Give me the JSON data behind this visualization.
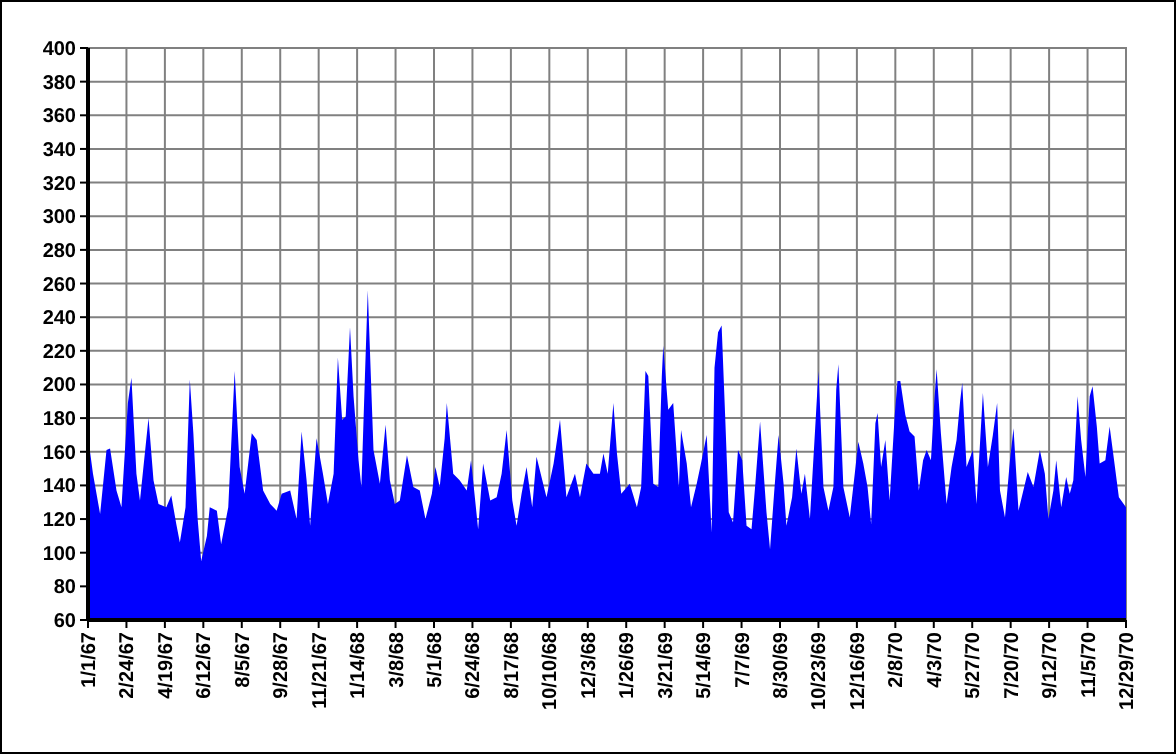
{
  "chart_data": {
    "type": "area",
    "grid": true,
    "x": [
      "1967-01-01",
      "1967-01-08",
      "1967-01-18",
      "1967-01-27",
      "1967-02-01",
      "1967-02-10",
      "1967-02-17",
      "1967-02-26",
      "1967-03-03",
      "1967-03-10",
      "1967-03-15",
      "1967-03-27",
      "1967-04-03",
      "1967-04-10",
      "1967-04-21",
      "1967-04-28",
      "1967-05-05",
      "1967-05-10",
      "1967-05-18",
      "1967-05-24",
      "1967-05-29",
      "1967-06-04",
      "1967-06-09",
      "1967-06-17",
      "1967-06-21",
      "1967-07-01",
      "1967-07-07",
      "1967-07-17",
      "1967-07-26",
      "1967-08-02",
      "1967-08-09",
      "1967-08-19",
      "1967-08-26",
      "1967-09-04",
      "1967-09-14",
      "1967-09-23",
      "1967-09-30",
      "1967-10-12",
      "1967-10-21",
      "1967-10-28",
      "1967-11-04",
      "1967-11-09",
      "1967-11-18",
      "1967-11-27",
      "1967-12-04",
      "1967-12-12",
      "1967-12-18",
      "1967-12-24",
      "1967-12-29",
      "1968-01-04",
      "1968-01-09",
      "1968-01-16",
      "1968-01-20",
      "1968-01-25",
      "1968-01-29",
      "1968-02-06",
      "1968-02-15",
      "1968-02-23",
      "1968-02-29",
      "1968-03-07",
      "1968-03-14",
      "1968-03-24",
      "1968-04-02",
      "1968-04-11",
      "1968-04-19",
      "1968-04-28",
      "1968-05-03",
      "1968-05-09",
      "1968-05-16",
      "1968-05-19",
      "1968-05-28",
      "1968-06-06",
      "1968-06-16",
      "1968-06-22",
      "1968-07-02",
      "1968-07-09",
      "1968-07-19",
      "1968-07-28",
      "1968-08-04",
      "1968-08-11",
      "1968-08-19",
      "1968-08-25",
      "1968-09-01",
      "1968-09-08",
      "1968-09-16",
      "1968-09-22",
      "1968-09-29",
      "1968-10-06",
      "1968-10-16",
      "1968-10-25",
      "1968-11-03",
      "1968-11-15",
      "1968-11-22",
      "1968-12-01",
      "1968-12-11",
      "1968-12-20",
      "1968-12-25",
      "1968-12-31",
      "1969-01-08",
      "1969-01-13",
      "1969-01-19",
      "1969-01-31",
      "1969-02-10",
      "1969-02-16",
      "1969-02-22",
      "1969-02-26",
      "1969-03-05",
      "1969-03-12",
      "1969-03-17",
      "1969-03-19",
      "1969-03-26",
      "1969-04-02",
      "1969-04-10",
      "1969-04-13",
      "1969-04-21",
      "1969-04-27",
      "1969-05-05",
      "1969-05-11",
      "1969-05-19",
      "1969-05-26",
      "1969-05-30",
      "1969-06-04",
      "1969-06-09",
      "1969-06-14",
      "1969-06-19",
      "1969-06-25",
      "1969-07-02",
      "1969-07-08",
      "1969-07-14",
      "1969-07-21",
      "1969-07-26",
      "1969-08-02",
      "1969-08-11",
      "1969-08-16",
      "1969-08-22",
      "1969-08-28",
      "1969-09-04",
      "1969-09-08",
      "1969-09-16",
      "1969-09-22",
      "1969-09-29",
      "1969-10-04",
      "1969-10-11",
      "1969-10-18",
      "1969-10-23",
      "1969-10-30",
      "1969-11-06",
      "1969-11-13",
      "1969-11-17",
      "1969-11-20",
      "1969-11-27",
      "1969-12-06",
      "1969-12-13",
      "1969-12-18",
      "1969-12-25",
      "1969-12-31",
      "1970-01-05",
      "1970-01-11",
      "1970-01-14",
      "1970-01-19",
      "1970-01-25",
      "1970-01-31",
      "1970-02-07",
      "1970-02-11",
      "1970-02-15",
      "1970-02-22",
      "1970-02-28",
      "1970-03-07",
      "1970-03-13",
      "1970-03-19",
      "1970-03-24",
      "1970-03-30",
      "1970-04-04",
      "1970-04-07",
      "1970-04-13",
      "1970-04-21",
      "1970-04-28",
      "1970-05-05",
      "1970-05-10",
      "1970-05-13",
      "1970-05-19",
      "1970-05-28",
      "1970-06-02",
      "1970-06-11",
      "1970-06-18",
      "1970-06-25",
      "1970-07-01",
      "1970-07-05",
      "1970-07-12",
      "1970-07-19",
      "1970-07-24",
      "1970-07-31",
      "1970-08-08",
      "1970-08-13",
      "1970-08-21",
      "1970-08-30",
      "1970-09-06",
      "1970-09-11",
      "1970-09-18",
      "1970-09-22",
      "1970-09-29",
      "1970-10-06",
      "1970-10-11",
      "1970-10-16",
      "1970-10-22",
      "1970-10-27",
      "1970-11-02",
      "1970-11-08",
      "1970-11-12",
      "1970-11-18",
      "1970-11-22",
      "1970-11-30",
      "1970-12-06",
      "1970-12-11",
      "1970-12-19",
      "1970-12-29"
    ],
    "series": [
      {
        "color": "#0000ff",
        "values": [
          169,
          147,
          123,
          161,
          162,
          137,
          127,
          189,
          204,
          147,
          131,
          180,
          143,
          129,
          127,
          134,
          117,
          106,
          127,
          203,
          171,
          120,
          95,
          110,
          127,
          125,
          105,
          127,
          208,
          151,
          135,
          171,
          167,
          137,
          129,
          125,
          135,
          137,
          120,
          172,
          143,
          116,
          168,
          147,
          129,
          147,
          216,
          179,
          181,
          234,
          193,
          155,
          139,
          205,
          256,
          161,
          141,
          176,
          143,
          129,
          131,
          158,
          139,
          137,
          120,
          135,
          151,
          139,
          168,
          189,
          147,
          143,
          137,
          155,
          114,
          153,
          131,
          133,
          147,
          173,
          131,
          116,
          135,
          151,
          127,
          157,
          145,
          133,
          153,
          179,
          133,
          147,
          133,
          153,
          147,
          147,
          159,
          147,
          189,
          159,
          135,
          141,
          127,
          139,
          208,
          205,
          141,
          139,
          205,
          223,
          185,
          189,
          139,
          173,
          153,
          127,
          141,
          153,
          170,
          112,
          210,
          231,
          235,
          181,
          124,
          118,
          161,
          155,
          116,
          114,
          139,
          178,
          124,
          102,
          137,
          170,
          141,
          116,
          133,
          162,
          135,
          147,
          120,
          171,
          208,
          139,
          125,
          139,
          197,
          212,
          139,
          121,
          147,
          166,
          153,
          139,
          117,
          177,
          183,
          151,
          167,
          131,
          181,
          202,
          202,
          182,
          172,
          169,
          137,
          155,
          161,
          155,
          192,
          209,
          171,
          129,
          151,
          167,
          190,
          201,
          151,
          161,
          129,
          195,
          151,
          170,
          189,
          137,
          121,
          155,
          174,
          125,
          139,
          148,
          139,
          161,
          147,
          120,
          137,
          155,
          127,
          145,
          135,
          143,
          193,
          167,
          145,
          193,
          199,
          175,
          153,
          155,
          175,
          159,
          133,
          127
        ]
      }
    ],
    "xlim": [
      "1967-01-01",
      "1970-12-29"
    ],
    "xticks": [
      {
        "value": "1967-01-01",
        "label": "1/1/67"
      },
      {
        "value": "1967-02-24",
        "label": "2/24/67"
      },
      {
        "value": "1967-04-19",
        "label": "4/19/67"
      },
      {
        "value": "1967-06-12",
        "label": "6/12/67"
      },
      {
        "value": "1967-08-05",
        "label": "8/5/67"
      },
      {
        "value": "1967-09-28",
        "label": "9/28/67"
      },
      {
        "value": "1967-11-21",
        "label": "11/21/67"
      },
      {
        "value": "1968-01-14",
        "label": "1/14/68"
      },
      {
        "value": "1968-03-08",
        "label": "3/8/68"
      },
      {
        "value": "1968-05-01",
        "label": "5/1/68"
      },
      {
        "value": "1968-06-24",
        "label": "6/24/68"
      },
      {
        "value": "1968-08-17",
        "label": "8/17/68"
      },
      {
        "value": "1968-10-10",
        "label": "10/10/68"
      },
      {
        "value": "1968-12-03",
        "label": "12/3/68"
      },
      {
        "value": "1969-01-26",
        "label": "1/26/69"
      },
      {
        "value": "1969-03-21",
        "label": "3/21/69"
      },
      {
        "value": "1969-05-14",
        "label": "5/14/69"
      },
      {
        "value": "1969-07-07",
        "label": "7/7/69"
      },
      {
        "value": "1969-08-30",
        "label": "8/30/69"
      },
      {
        "value": "1969-10-23",
        "label": "10/23/69"
      },
      {
        "value": "1969-12-16",
        "label": "12/16/69"
      },
      {
        "value": "1970-02-08",
        "label": "2/8/70"
      },
      {
        "value": "1970-04-03",
        "label": "4/3/70"
      },
      {
        "value": "1970-05-27",
        "label": "5/27/70"
      },
      {
        "value": "1970-07-20",
        "label": "7/20/70"
      },
      {
        "value": "1970-09-12",
        "label": "9/12/70"
      },
      {
        "value": "1970-11-05",
        "label": "11/5/70"
      },
      {
        "value": "1970-12-29",
        "label": "12/29/70"
      }
    ],
    "ylim": [
      60,
      400
    ],
    "yticks": [
      60,
      80,
      100,
      120,
      140,
      160,
      180,
      200,
      220,
      240,
      260,
      280,
      300,
      320,
      340,
      360,
      380,
      400
    ]
  }
}
